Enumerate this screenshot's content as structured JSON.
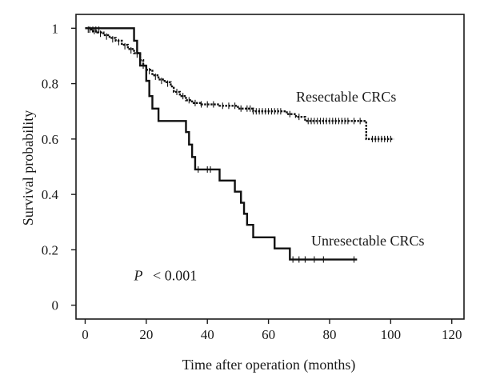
{
  "chart_data": {
    "type": "line",
    "xlabel": "Time after operation (months)",
    "ylabel": "Survival probability",
    "xlim": [
      -3,
      124
    ],
    "ylim": [
      -0.05,
      1.05
    ],
    "xticks": [
      0,
      20,
      40,
      60,
      80,
      100,
      120
    ],
    "yticks": [
      0,
      0.2,
      0.4,
      0.6,
      0.8,
      1
    ],
    "x_tick_labels": [
      "0",
      "20",
      "40",
      "60",
      "80",
      "100",
      "120"
    ],
    "y_tick_labels": [
      "0",
      "0.2",
      "0.4",
      "0.6",
      "0.8",
      "1"
    ],
    "grid": false,
    "annotation": {
      "italic": "P",
      "rest": "< 0.001",
      "x": 16,
      "y": 0.09
    },
    "series": [
      {
        "name": "Unresectable CRCs",
        "label_anchor": {
          "x": 74,
          "y": 0.215
        },
        "steps": [
          [
            0,
            1.0
          ],
          [
            16,
            0.955
          ],
          [
            17,
            0.91
          ],
          [
            18,
            0.865
          ],
          [
            20,
            0.81
          ],
          [
            21,
            0.755
          ],
          [
            22,
            0.71
          ],
          [
            24,
            0.665
          ],
          [
            33,
            0.625
          ],
          [
            34,
            0.58
          ],
          [
            35,
            0.535
          ],
          [
            36,
            0.49
          ],
          [
            44,
            0.45
          ],
          [
            49,
            0.41
          ],
          [
            51,
            0.37
          ],
          [
            52,
            0.33
          ],
          [
            53,
            0.29
          ],
          [
            55,
            0.245
          ],
          [
            62,
            0.205
          ],
          [
            67,
            0.165
          ],
          [
            89,
            0.165
          ]
        ],
        "censored": [
          [
            1.5,
            0.995
          ],
          [
            2.5,
            0.995
          ],
          [
            3.5,
            0.995
          ],
          [
            4.5,
            0.995
          ],
          [
            37,
            0.49
          ],
          [
            40,
            0.49
          ],
          [
            41,
            0.49
          ],
          [
            68,
            0.165
          ],
          [
            70,
            0.165
          ],
          [
            72,
            0.165
          ],
          [
            75,
            0.165
          ],
          [
            78,
            0.165
          ],
          [
            88,
            0.165
          ]
        ]
      },
      {
        "name": "Resectable CRCs",
        "label_anchor": {
          "x": 69,
          "y": 0.735
        },
        "steps": [
          [
            0,
            1.0
          ],
          [
            2,
            0.99
          ],
          [
            4,
            0.985
          ],
          [
            6,
            0.975
          ],
          [
            8,
            0.965
          ],
          [
            10,
            0.955
          ],
          [
            12,
            0.94
          ],
          [
            14,
            0.925
          ],
          [
            16,
            0.91
          ],
          [
            18,
            0.885
          ],
          [
            19,
            0.865
          ],
          [
            20,
            0.85
          ],
          [
            22,
            0.83
          ],
          [
            24,
            0.815
          ],
          [
            26,
            0.805
          ],
          [
            28,
            0.79
          ],
          [
            29,
            0.77
          ],
          [
            31,
            0.755
          ],
          [
            33,
            0.74
          ],
          [
            35,
            0.73
          ],
          [
            38,
            0.725
          ],
          [
            44,
            0.72
          ],
          [
            50,
            0.71
          ],
          [
            55,
            0.7
          ],
          [
            66,
            0.69
          ],
          [
            69,
            0.68
          ],
          [
            72,
            0.665
          ],
          [
            91,
            0.665
          ],
          [
            92,
            0.6
          ],
          [
            101,
            0.6
          ]
        ],
        "censored": [
          [
            1,
            0.995
          ],
          [
            3,
            0.99
          ],
          [
            5,
            0.98
          ],
          [
            7,
            0.97
          ],
          [
            9,
            0.96
          ],
          [
            11,
            0.95
          ],
          [
            13,
            0.935
          ],
          [
            15,
            0.92
          ],
          [
            17,
            0.905
          ],
          [
            19,
            0.865
          ],
          [
            21,
            0.845
          ],
          [
            23,
            0.825
          ],
          [
            25,
            0.81
          ],
          [
            27,
            0.8
          ],
          [
            30,
            0.77
          ],
          [
            32,
            0.755
          ],
          [
            34,
            0.74
          ],
          [
            36,
            0.73
          ],
          [
            38,
            0.725
          ],
          [
            40,
            0.725
          ],
          [
            42,
            0.725
          ],
          [
            45,
            0.72
          ],
          [
            47,
            0.72
          ],
          [
            49,
            0.72
          ],
          [
            51,
            0.71
          ],
          [
            53,
            0.71
          ],
          [
            54,
            0.71
          ],
          [
            55,
            0.7
          ],
          [
            56,
            0.7
          ],
          [
            57,
            0.7
          ],
          [
            58,
            0.7
          ],
          [
            59,
            0.7
          ],
          [
            60,
            0.7
          ],
          [
            61,
            0.7
          ],
          [
            62,
            0.7
          ],
          [
            63,
            0.7
          ],
          [
            64,
            0.7
          ],
          [
            67,
            0.69
          ],
          [
            70,
            0.68
          ],
          [
            73,
            0.665
          ],
          [
            74,
            0.665
          ],
          [
            75,
            0.665
          ],
          [
            76,
            0.665
          ],
          [
            77,
            0.665
          ],
          [
            78,
            0.665
          ],
          [
            79,
            0.665
          ],
          [
            80,
            0.665
          ],
          [
            81,
            0.665
          ],
          [
            82,
            0.665
          ],
          [
            83,
            0.665
          ],
          [
            84,
            0.665
          ],
          [
            85,
            0.665
          ],
          [
            86,
            0.665
          ],
          [
            88,
            0.665
          ],
          [
            90,
            0.665
          ],
          [
            94,
            0.6
          ],
          [
            95,
            0.6
          ],
          [
            96,
            0.6
          ],
          [
            97,
            0.6
          ],
          [
            98,
            0.6
          ],
          [
            99,
            0.6
          ],
          [
            100,
            0.6
          ]
        ]
      }
    ]
  }
}
